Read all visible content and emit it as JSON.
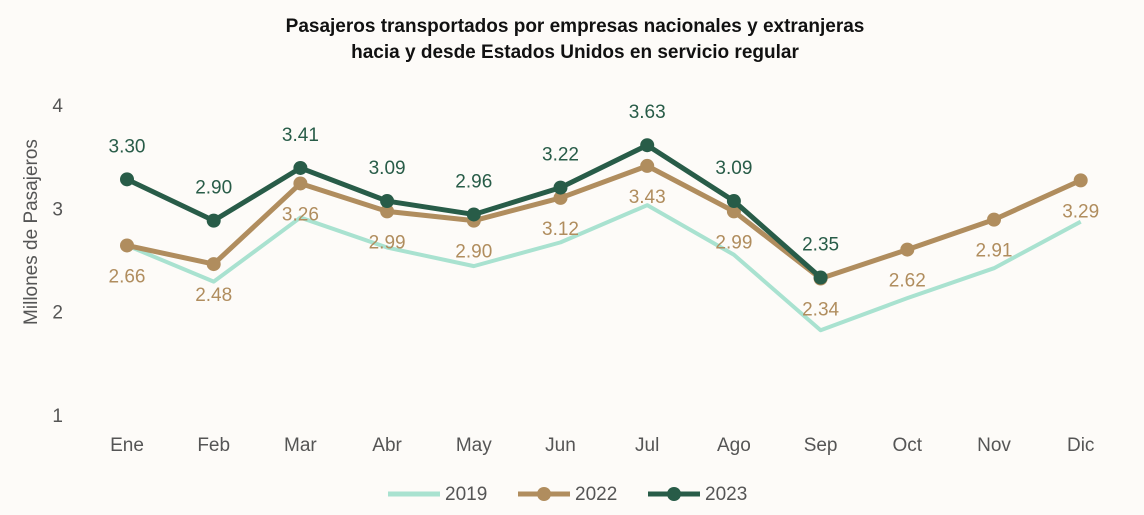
{
  "chart_data": {
    "type": "line",
    "title": [
      "Pasajeros transportados por empresas nacionales y extranjeras",
      "hacia y desde Estados Unidos en servicio regular"
    ],
    "ylabel": "Millones de Pasajeros",
    "categories": [
      "Ene",
      "Feb",
      "Mar",
      "Abr",
      "May",
      "Jun",
      "Jul",
      "Ago",
      "Sep",
      "Oct",
      "Nov",
      "Dic"
    ],
    "ylim": [
      1,
      4
    ],
    "yticks": [
      1,
      2,
      3,
      4
    ],
    "legend": "bottom",
    "series": [
      {
        "name": "2019",
        "color": "#a9e2d0",
        "values": [
          2.66,
          2.31,
          2.93,
          2.64,
          2.46,
          2.69,
          3.05,
          2.57,
          1.84,
          2.15,
          2.44,
          2.89
        ]
      },
      {
        "name": "2022",
        "color": "#b08d5e",
        "values": [
          2.66,
          2.48,
          3.26,
          2.99,
          2.9,
          3.12,
          3.43,
          2.99,
          2.34,
          2.62,
          2.91,
          3.29
        ],
        "value_labels": [
          "2.66",
          "2.48",
          "3.26",
          "2.99",
          "2.90",
          "3.12",
          "3.43",
          "2.99",
          "2.34",
          "2.62",
          "2.91",
          "3.29"
        ]
      },
      {
        "name": "2023",
        "color": "#285c48",
        "values": [
          3.3,
          2.9,
          3.41,
          3.09,
          2.96,
          3.22,
          3.63,
          3.09,
          2.35,
          null,
          null,
          null
        ],
        "value_labels": [
          "3.30",
          "2.90",
          "3.41",
          "3.09",
          "2.96",
          "3.22",
          "3.63",
          "3.09",
          "2.35",
          null,
          null,
          null
        ]
      }
    ]
  }
}
